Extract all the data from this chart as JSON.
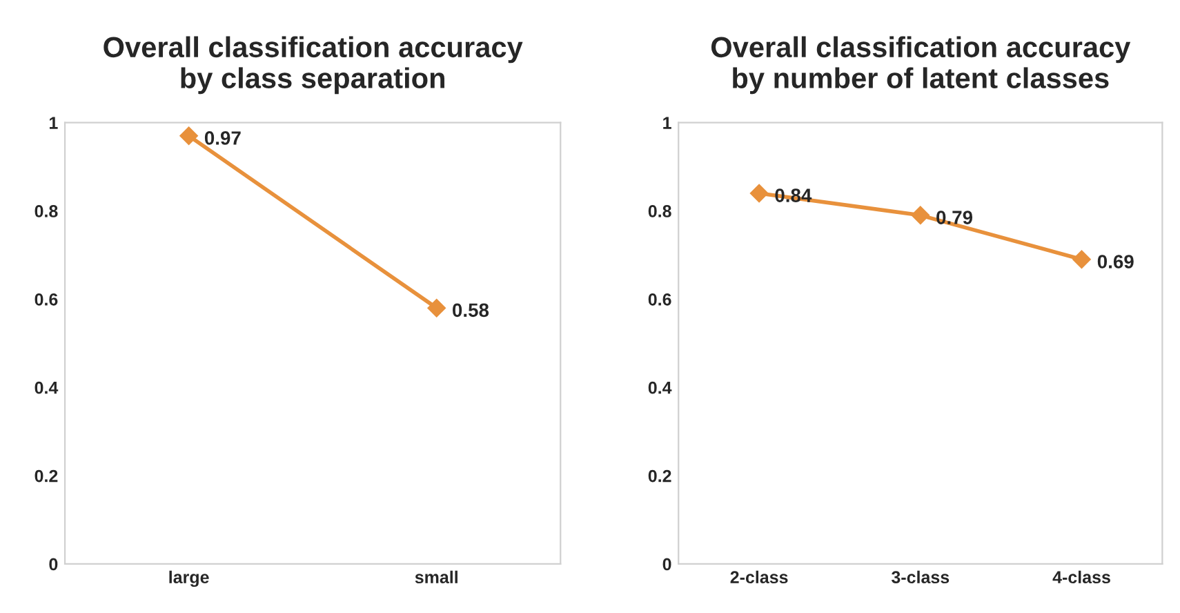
{
  "chart_data": [
    {
      "type": "line",
      "title": "Overall classification accuracy\nby class separation",
      "categories": [
        "large",
        "small"
      ],
      "series": [
        {
          "color": "#e8913c",
          "values": [
            0.97,
            0.58
          ]
        }
      ],
      "ylim": [
        0,
        1
      ],
      "yticks": [
        0,
        0.2,
        0.4,
        0.6,
        0.8,
        1
      ],
      "data_labels": true,
      "marker": "diamond",
      "line_style": "solid",
      "grid": false
    },
    {
      "type": "line",
      "title": "Overall classification accuracy\nby number of latent classes",
      "categories": [
        "2-class",
        "3-class",
        "4-class"
      ],
      "series": [
        {
          "color": "#e8913c",
          "values": [
            0.84,
            0.79,
            0.69
          ]
        }
      ],
      "ylim": [
        0,
        1
      ],
      "yticks": [
        0,
        0.2,
        0.4,
        0.6,
        0.8,
        1
      ],
      "data_labels": true,
      "marker": "diamond",
      "line_style": "solid",
      "grid": false
    }
  ]
}
